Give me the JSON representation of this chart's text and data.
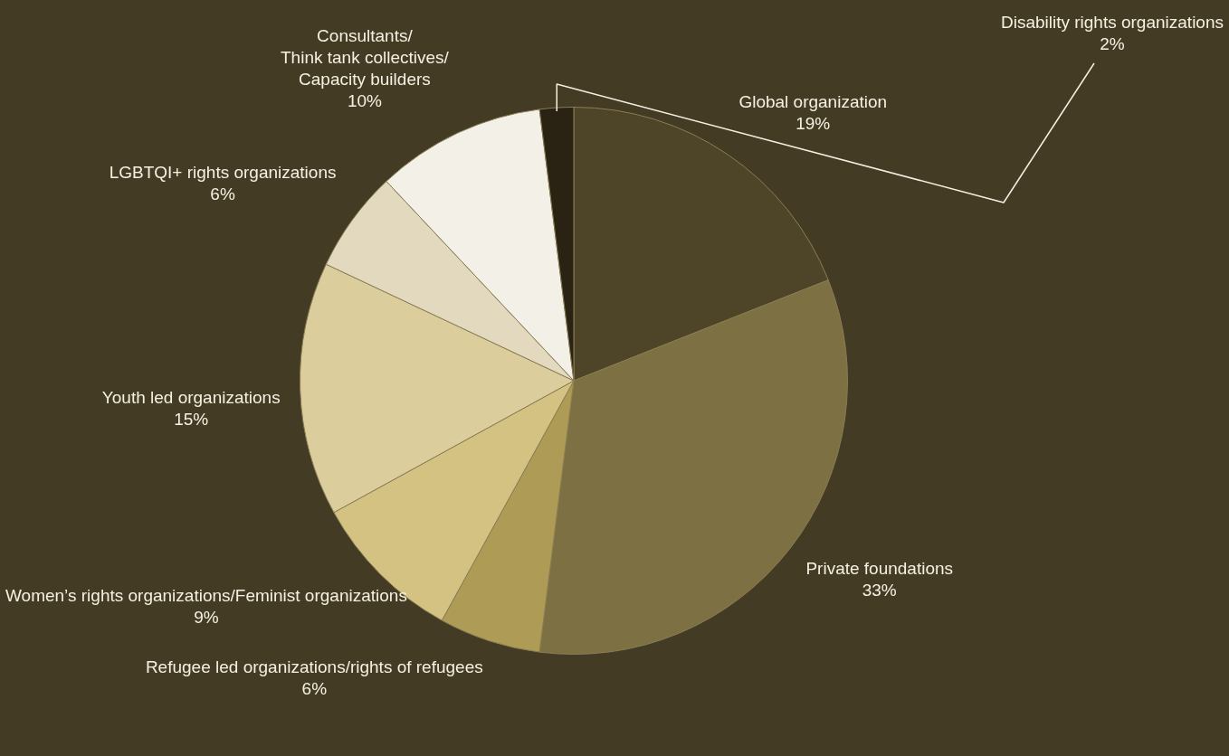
{
  "chart_data": {
    "type": "pie",
    "categories": [
      "Global organization",
      "Private foundations",
      "Refugee led organizations/rights of refugees",
      "Women’s rights organizations/Feminist organizations",
      "Youth led organizations",
      "LGBTQI+ rights organizations",
      "Consultants/\nThink tank collectives/\nCapacity builders",
      "Disability rights organizations"
    ],
    "values": [
      19,
      33,
      6,
      9,
      15,
      6,
      10,
      2
    ],
    "colors": [
      "#4e4428",
      "#7d7042",
      "#ae9b55",
      "#d4c282",
      "#dccd9d",
      "#e2d9bf",
      "#f3f0e8",
      "#2a2314"
    ],
    "value_labels": [
      "19%",
      "33%",
      "6%",
      "9%",
      "15%",
      "6%",
      "10%",
      "2%"
    ],
    "data_labels": true,
    "legend": false
  }
}
